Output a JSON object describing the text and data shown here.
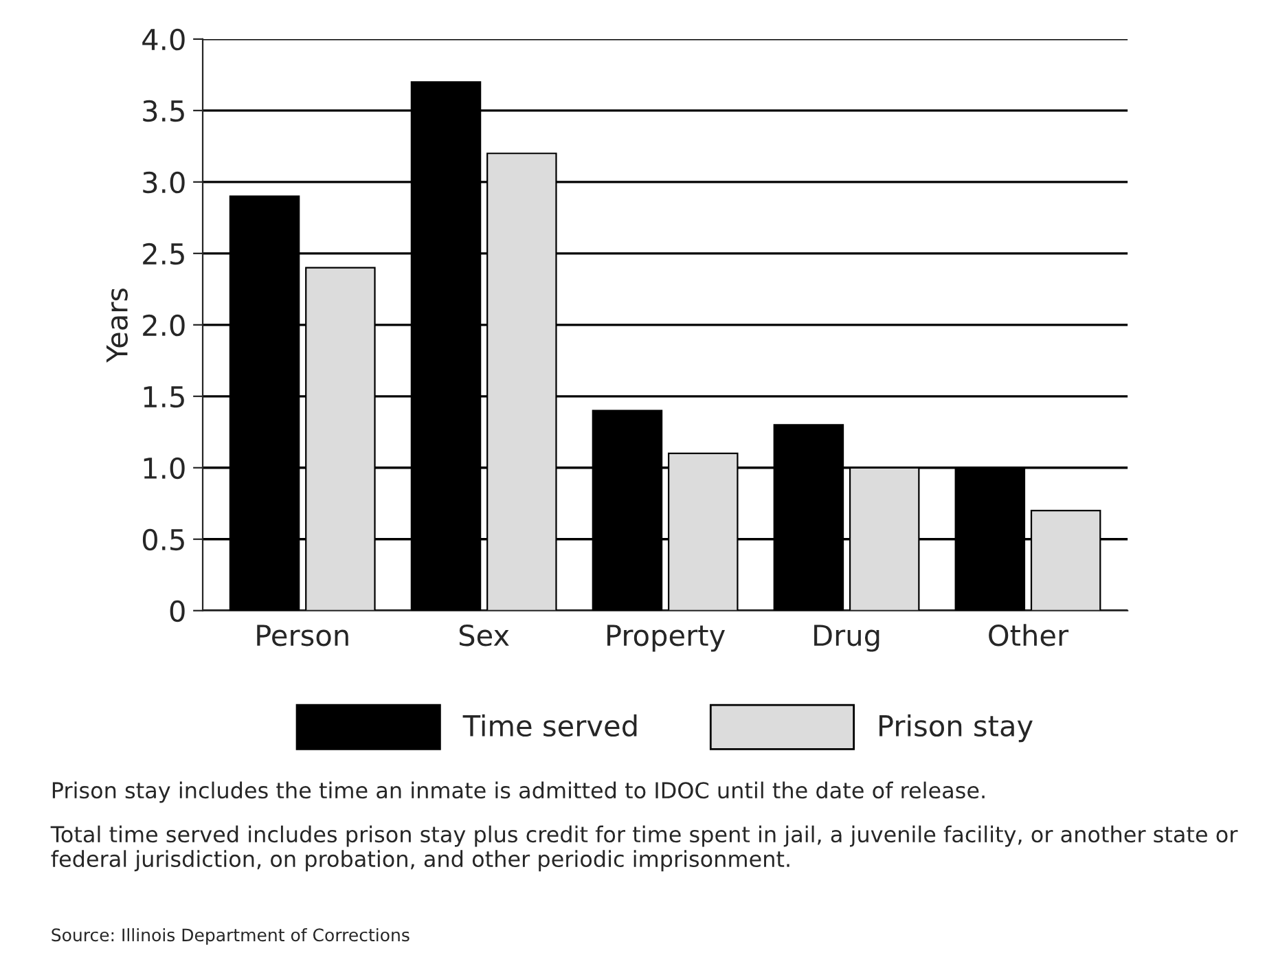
{
  "chart_data": {
    "type": "bar",
    "ylabel": "Years",
    "categories": [
      "Person",
      "Sex",
      "Property",
      "Drug",
      "Other"
    ],
    "series": [
      {
        "name": "Time served",
        "color": "#000000",
        "values": [
          2.9,
          3.7,
          1.4,
          1.3,
          1.0
        ]
      },
      {
        "name": "Prison stay",
        "color": "#dcdcdc",
        "values": [
          2.4,
          3.2,
          1.1,
          1.0,
          0.7
        ]
      }
    ],
    "ylim": [
      0,
      4.0
    ],
    "yticks": [
      {
        "value": 0,
        "label": "0"
      },
      {
        "value": 0.5,
        "label": "0.5"
      },
      {
        "value": 1.0,
        "label": "1.0"
      },
      {
        "value": 1.5,
        "label": "1.5"
      },
      {
        "value": 2.0,
        "label": "2.0"
      },
      {
        "value": 2.5,
        "label": "2.5"
      },
      {
        "value": 3.0,
        "label": "3.0"
      },
      {
        "value": 3.5,
        "label": "3.5"
      },
      {
        "value": 4.0,
        "label": "4.0"
      }
    ],
    "grid": "y",
    "legend": "bottom",
    "annotations": [
      "Prison stay includes the time an inmate is admitted to IDOC until the date of release.",
      "Total time served includes prison stay plus credit for time spent in jail, a juvenile facility, or another state or federal jurisdiction, on probation, and other periodic imprisonment.",
      "Source: Illinois Department of Corrections"
    ]
  }
}
